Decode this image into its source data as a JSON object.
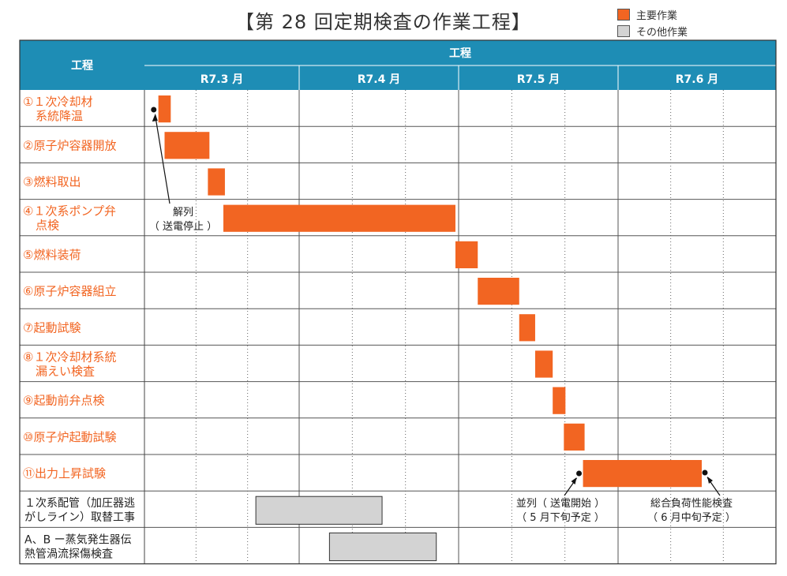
{
  "title": "【第 28 回定期検査の作業工程】",
  "legend": {
    "main_label": "主要作業",
    "other_label": "その他作業",
    "main_color": "#f26522",
    "other_color": "#d3d3d3"
  },
  "header": {
    "process_col_label": "工程",
    "timeline_label": "工程",
    "bg_color": "#1e8db5",
    "text_color": "#ffffff"
  },
  "chart_data": {
    "type": "gantt",
    "months": [
      "R7.3 月",
      "R7.4 月",
      "R7.5 月",
      "R7.6 月"
    ],
    "x_unit": "month index (0 = start of R7.3, 4 = end of R7.6)",
    "tasks": [
      {
        "label_lines": [
          "①１次冷却材",
          "系統降温"
        ],
        "start": 0.09,
        "end": 0.17,
        "kind": "main"
      },
      {
        "label_lines": [
          "②原子炉容器開放"
        ],
        "start": 0.13,
        "end": 0.42,
        "kind": "main"
      },
      {
        "label_lines": [
          "③燃料取出"
        ],
        "start": 0.41,
        "end": 0.52,
        "kind": "main"
      },
      {
        "label_lines": [
          "④１次系ポンプ弁",
          "点検"
        ],
        "start": 0.51,
        "end": 1.98,
        "kind": "main"
      },
      {
        "label_lines": [
          "⑤燃料装荷"
        ],
        "start": 1.98,
        "end": 2.12,
        "kind": "main"
      },
      {
        "label_lines": [
          "⑥原子炉容器組立"
        ],
        "start": 2.12,
        "end": 2.38,
        "kind": "main"
      },
      {
        "label_lines": [
          "⑦起動試験"
        ],
        "start": 2.38,
        "end": 2.48,
        "kind": "main"
      },
      {
        "label_lines": [
          "⑧１次冷却材系統",
          "漏えい検査"
        ],
        "start": 2.48,
        "end": 2.59,
        "kind": "main"
      },
      {
        "label_lines": [
          "⑨起動前弁点検"
        ],
        "start": 2.59,
        "end": 2.67,
        "kind": "main"
      },
      {
        "label_lines": [
          "⑩原子炉起動試験"
        ],
        "start": 2.66,
        "end": 2.79,
        "kind": "main"
      },
      {
        "label_lines": [
          "⑪出力上昇試験"
        ],
        "start": 2.78,
        "end": 3.53,
        "kind": "main"
      },
      {
        "label_lines": [
          "１次系配管（加圧器逃",
          "がしライン）取替工事"
        ],
        "start": 0.72,
        "end": 1.52,
        "kind": "other"
      },
      {
        "label_lines": [
          "A、B ー蒸気発生器伝",
          "熱管渦流探傷検査"
        ],
        "start": 1.19,
        "end": 1.86,
        "kind": "other"
      }
    ],
    "annotations": [
      {
        "text_lines": [
          "解列",
          "（ 送電停止 ）"
        ],
        "point_x": 0.06,
        "point_row": 0
      },
      {
        "text_lines": [
          "並列（ 送電開始 ）",
          "（ 5 月下旬予定 ）"
        ],
        "point_x": 2.77,
        "point_row": 10
      },
      {
        "text_lines": [
          "総合負荷性能検査",
          "（ 6 月中旬予定 ）"
        ],
        "point_x": 3.55,
        "point_row": 10
      }
    ]
  }
}
